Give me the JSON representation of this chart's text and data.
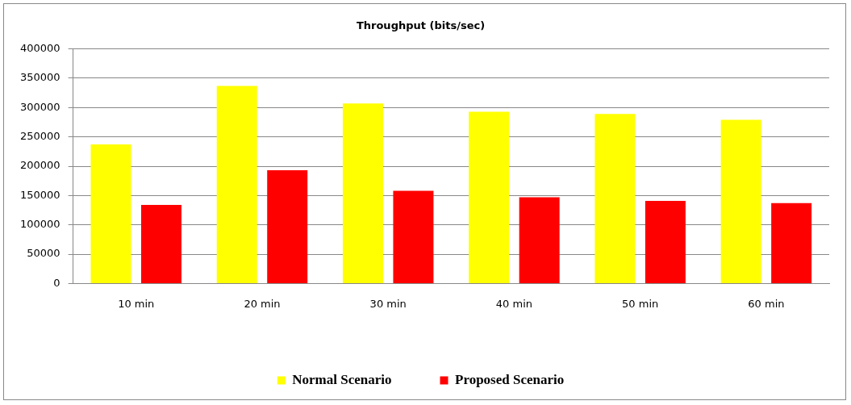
{
  "chart_data": {
    "type": "bar",
    "title": "Throughput (bits/sec)",
    "categories": [
      "10 min",
      "20 min",
      "30 min",
      "40 min",
      "50 min",
      "60 min"
    ],
    "series": [
      {
        "name": "Normal Scenario",
        "color": "#ffff00",
        "values": [
          237000,
          337000,
          307000,
          293000,
          289000,
          279000
        ]
      },
      {
        "name": "Proposed Scenario",
        "color": "#ff0000",
        "values": [
          134000,
          193000,
          158000,
          147000,
          141000,
          137000
        ]
      }
    ],
    "ylim": [
      0,
      400000
    ],
    "yticks": [
      0,
      50000,
      100000,
      150000,
      200000,
      250000,
      300000,
      350000,
      400000
    ],
    "grid": "y",
    "legend": "bottom"
  }
}
